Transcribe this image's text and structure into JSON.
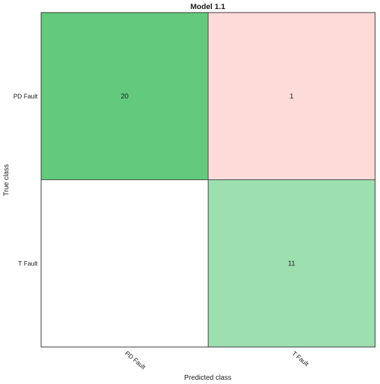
{
  "chart_data": {
    "type": "heatmap",
    "title": "Model 1.1",
    "xlabel": "Predicted class",
    "ylabel": "True class",
    "row_labels": [
      "PD Fault",
      "T Fault"
    ],
    "col_labels": [
      "PD Fault",
      "T Fault"
    ],
    "values": [
      [
        20,
        1
      ],
      [
        0,
        11
      ]
    ],
    "cell_text": [
      [
        "20",
        "1"
      ],
      [
        "",
        "11"
      ]
    ],
    "cell_colors": [
      [
        "#63c97c",
        "#fddbd9"
      ],
      [
        "#ffffff",
        "#9edfb0"
      ]
    ],
    "colors": {
      "correct": "#63c97c",
      "error": "#fddbd9",
      "border": "#333333"
    }
  }
}
